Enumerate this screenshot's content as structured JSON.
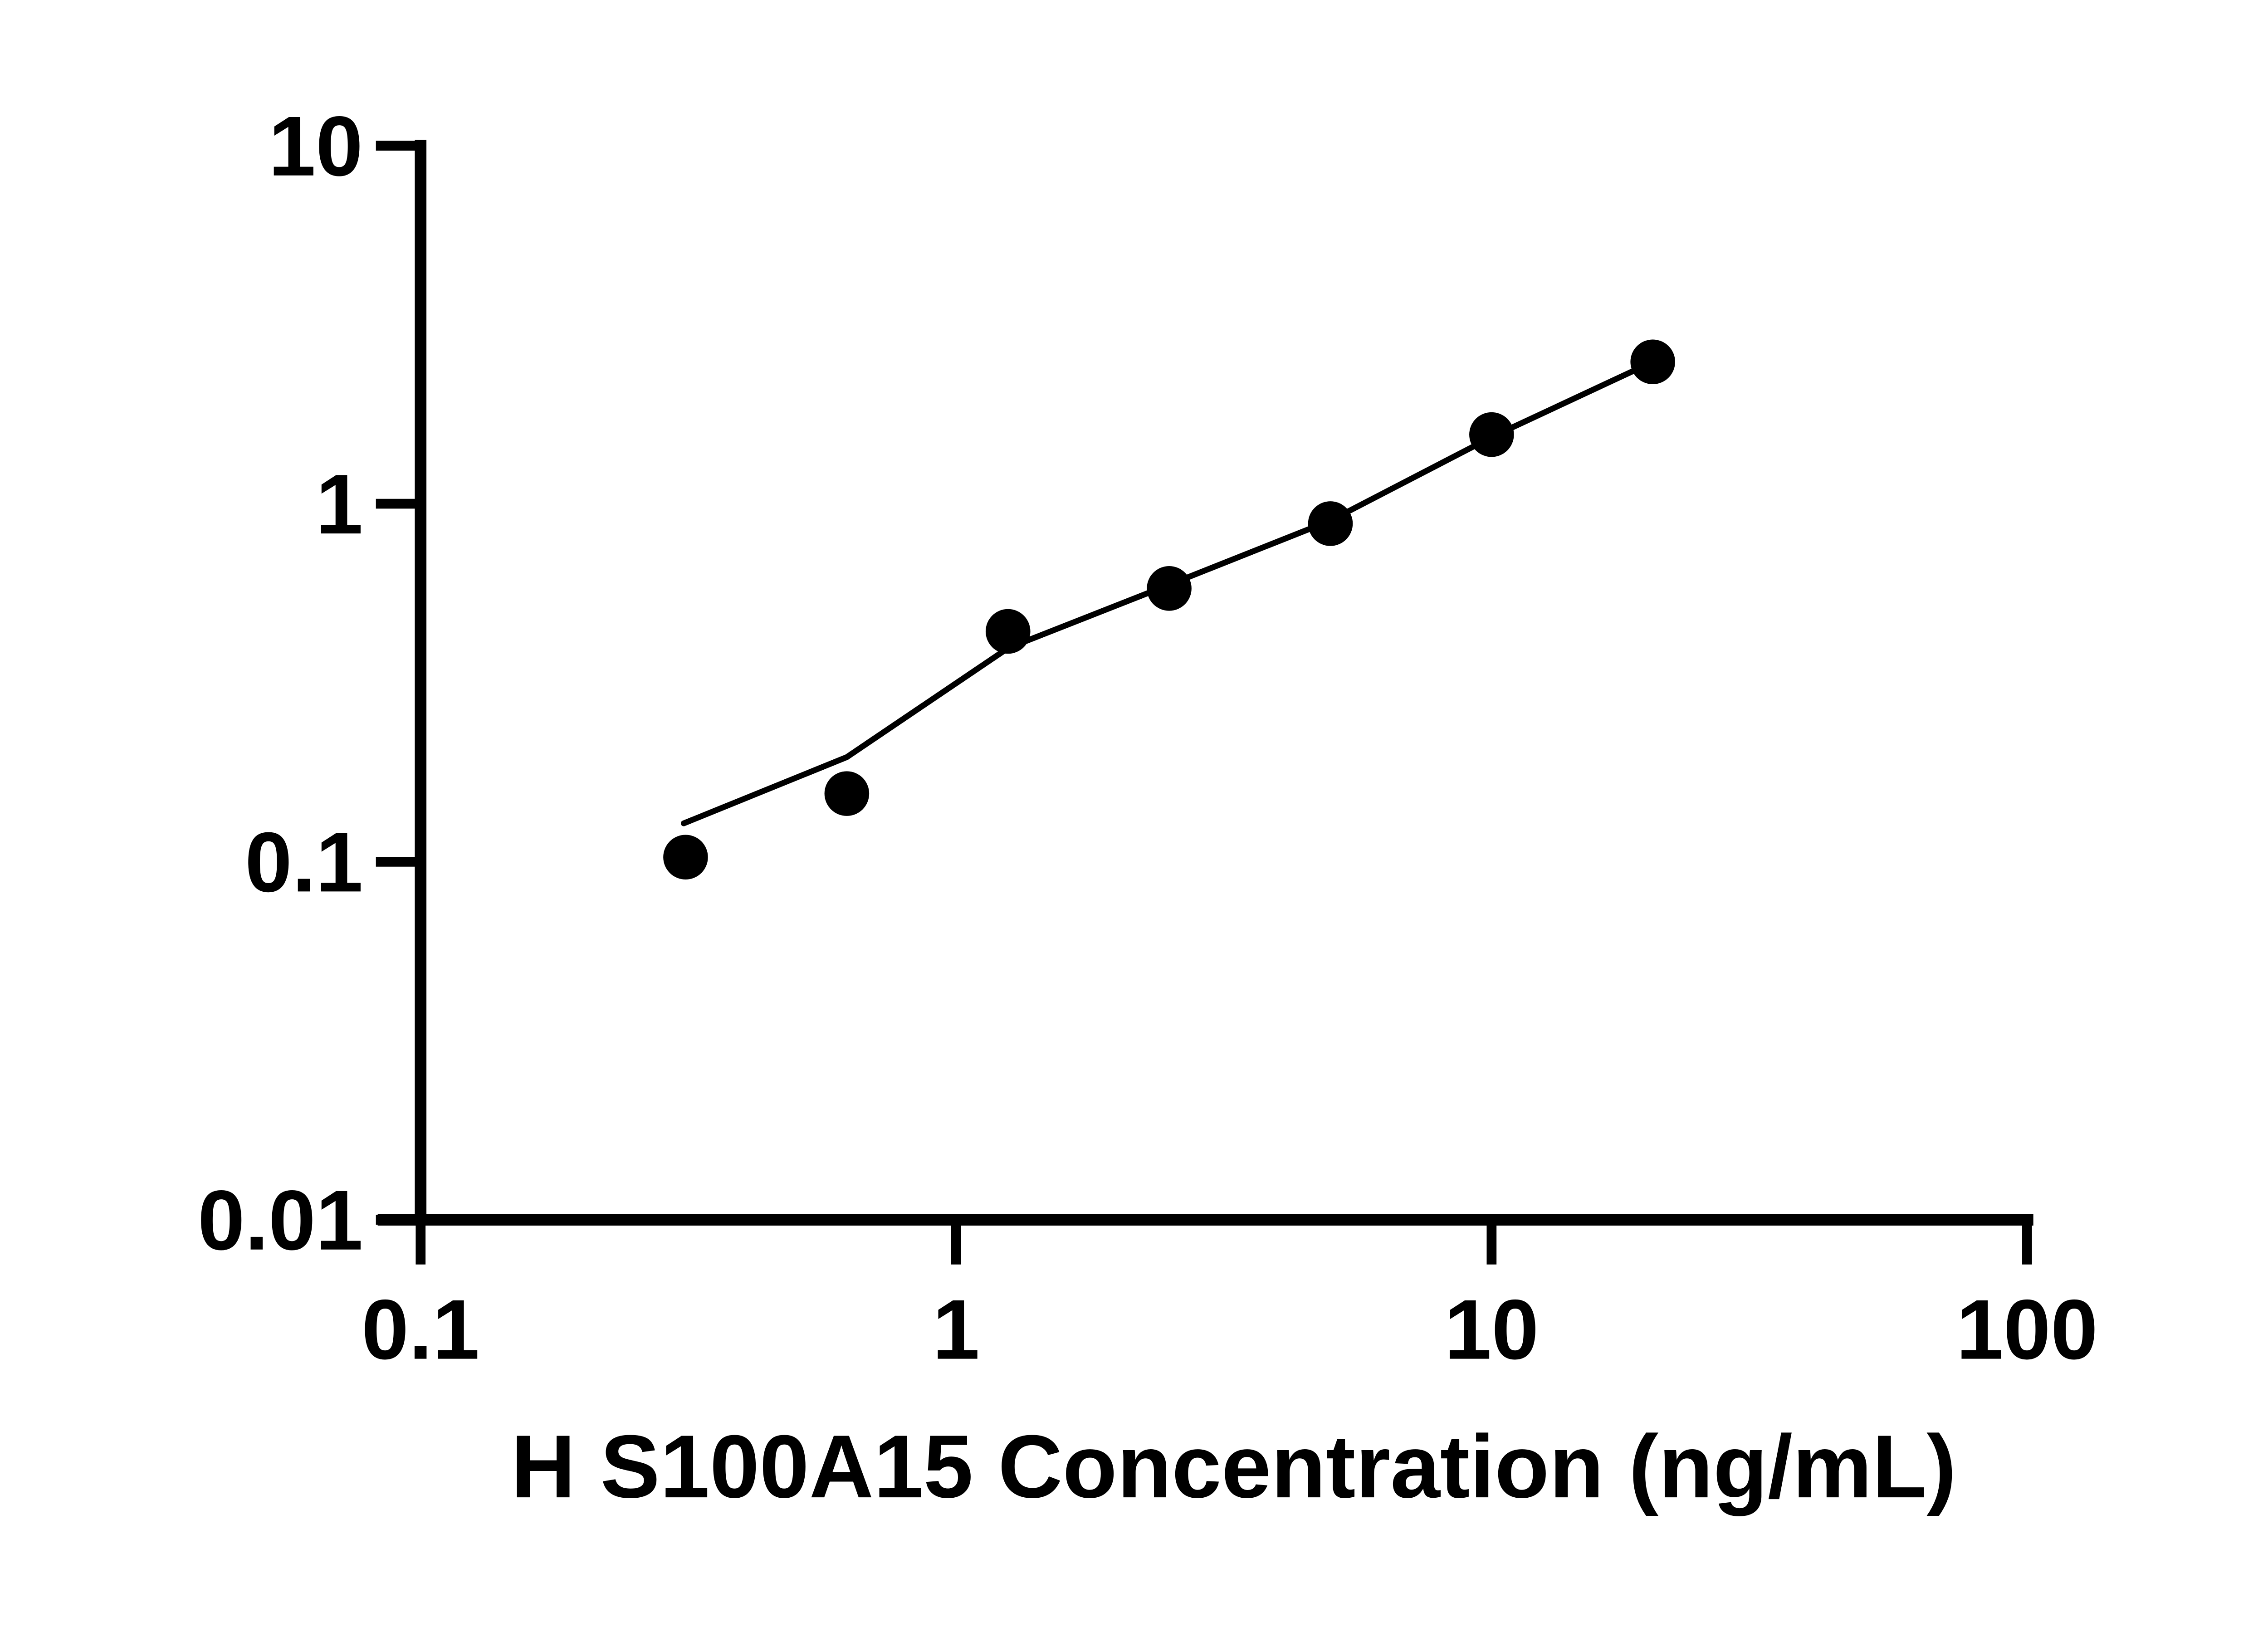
{
  "page": {
    "background_color": "#ffffff",
    "foreground_color": "#000000"
  },
  "chart_data": {
    "type": "scatter",
    "title": "",
    "xlabel": "H S100A15 Concentration (ng/mL)",
    "ylabel": "",
    "x_scale": "log",
    "y_scale": "log",
    "xlim": [
      0.1,
      100
    ],
    "ylim": [
      0.01,
      10
    ],
    "grid": false,
    "legend_position": "none",
    "x_ticks": [
      {
        "value": 0.1,
        "label": "0.1"
      },
      {
        "value": 1,
        "label": "1"
      },
      {
        "value": 10,
        "label": "10"
      },
      {
        "value": 100,
        "label": "100"
      }
    ],
    "y_ticks": [
      {
        "value": 0.01,
        "label": "0.01"
      },
      {
        "value": 0.1,
        "label": "0.1"
      },
      {
        "value": 1,
        "label": "1"
      },
      {
        "value": 10,
        "label": "10"
      }
    ],
    "series": [
      {
        "name": "standard-curve-points",
        "marker": "filled-circle",
        "color": "#000000",
        "points": [
          {
            "x": 0.3125,
            "y": 0.103
          },
          {
            "x": 0.625,
            "y": 0.155
          },
          {
            "x": 1.25,
            "y": 0.44
          },
          {
            "x": 2.5,
            "y": 0.58
          },
          {
            "x": 5,
            "y": 0.88
          },
          {
            "x": 10,
            "y": 1.56
          },
          {
            "x": 20,
            "y": 2.49
          }
        ]
      }
    ],
    "fit_line": {
      "name": "fitted-curve",
      "color": "#000000",
      "points": [
        {
          "x": 0.31,
          "y": 0.128
        },
        {
          "x": 0.625,
          "y": 0.196
        },
        {
          "x": 1.25,
          "y": 0.395
        },
        {
          "x": 2.5,
          "y": 0.594
        },
        {
          "x": 5,
          "y": 0.897
        },
        {
          "x": 10,
          "y": 1.535
        },
        {
          "x": 20,
          "y": 2.49
        }
      ]
    }
  }
}
